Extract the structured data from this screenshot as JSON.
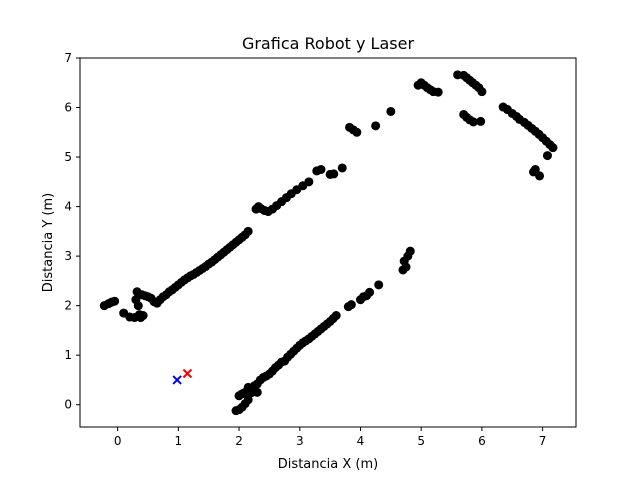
{
  "chart_data": {
    "type": "scatter",
    "title": "Grafica Robot y Laser",
    "xlabel": "Distancia X (m)",
    "ylabel": "Distancia Y (m)",
    "xlim": [
      -0.62,
      7.55
    ],
    "ylim": [
      -0.45,
      7.0
    ],
    "xticks": [
      0,
      1,
      2,
      3,
      4,
      5,
      6,
      7
    ],
    "yticks": [
      0,
      1,
      2,
      3,
      4,
      5,
      6,
      7
    ],
    "xtick_labels": [
      "0",
      "1",
      "2",
      "3",
      "4",
      "5",
      "6",
      "7"
    ],
    "ytick_labels": [
      "0",
      "1",
      "2",
      "3",
      "4",
      "5",
      "6",
      "7"
    ],
    "grid": false,
    "colors": {
      "laser": "#000000",
      "robot": "#0000ff",
      "target": "#ff0000"
    },
    "series": [
      {
        "marker": "circle",
        "color": "#000000",
        "points": [
          [
            -0.22,
            2.0
          ],
          [
            -0.15,
            2.04
          ],
          [
            -0.1,
            2.07
          ],
          [
            -0.05,
            2.09
          ],
          [
            0.1,
            1.85
          ],
          [
            0.2,
            1.77
          ],
          [
            0.28,
            1.76
          ],
          [
            0.3,
            2.12
          ],
          [
            0.32,
            2.28
          ],
          [
            0.34,
            2.0
          ],
          [
            0.36,
            1.82
          ],
          [
            0.38,
            1.76
          ],
          [
            0.4,
            2.22
          ],
          [
            0.42,
            1.8
          ],
          [
            0.45,
            2.2
          ],
          [
            0.5,
            2.18
          ],
          [
            0.55,
            2.15
          ],
          [
            0.6,
            2.08
          ],
          [
            0.65,
            2.05
          ],
          [
            0.7,
            2.12
          ],
          [
            0.75,
            2.18
          ],
          [
            0.8,
            2.22
          ],
          [
            0.85,
            2.28
          ],
          [
            0.9,
            2.32
          ],
          [
            0.95,
            2.37
          ],
          [
            1.0,
            2.42
          ],
          [
            1.05,
            2.47
          ],
          [
            1.1,
            2.52
          ],
          [
            1.15,
            2.56
          ],
          [
            1.2,
            2.6
          ],
          [
            1.25,
            2.63
          ],
          [
            1.3,
            2.67
          ],
          [
            1.35,
            2.71
          ],
          [
            1.4,
            2.75
          ],
          [
            1.45,
            2.79
          ],
          [
            1.5,
            2.84
          ],
          [
            1.55,
            2.88
          ],
          [
            1.6,
            2.93
          ],
          [
            1.65,
            2.98
          ],
          [
            1.7,
            3.03
          ],
          [
            1.75,
            3.08
          ],
          [
            1.8,
            3.13
          ],
          [
            1.85,
            3.18
          ],
          [
            1.9,
            3.23
          ],
          [
            1.95,
            3.28
          ],
          [
            2.0,
            3.33
          ],
          [
            2.05,
            3.38
          ],
          [
            2.1,
            3.43
          ],
          [
            2.15,
            3.5
          ],
          [
            2.28,
            3.95
          ],
          [
            2.32,
            4.0
          ],
          [
            2.36,
            3.96
          ],
          [
            2.42,
            3.92
          ],
          [
            2.48,
            3.9
          ],
          [
            2.55,
            3.95
          ],
          [
            2.62,
            4.02
          ],
          [
            2.7,
            4.1
          ],
          [
            2.78,
            4.18
          ],
          [
            2.86,
            4.26
          ],
          [
            2.95,
            4.34
          ],
          [
            3.05,
            4.42
          ],
          [
            3.15,
            4.5
          ],
          [
            3.28,
            4.72
          ],
          [
            3.35,
            4.75
          ],
          [
            3.5,
            4.65
          ],
          [
            3.56,
            4.66
          ],
          [
            3.7,
            4.78
          ],
          [
            3.82,
            5.6
          ],
          [
            3.88,
            5.55
          ],
          [
            3.94,
            5.5
          ],
          [
            4.25,
            5.63
          ],
          [
            4.5,
            5.92
          ],
          [
            4.95,
            6.45
          ],
          [
            5.0,
            6.5
          ],
          [
            5.05,
            6.45
          ],
          [
            5.1,
            6.4
          ],
          [
            5.15,
            6.36
          ],
          [
            5.2,
            6.32
          ],
          [
            5.28,
            6.31
          ],
          [
            5.6,
            6.66
          ],
          [
            5.7,
            6.65
          ],
          [
            5.75,
            6.6
          ],
          [
            5.8,
            6.55
          ],
          [
            5.85,
            6.5
          ],
          [
            5.9,
            6.45
          ],
          [
            5.95,
            6.4
          ],
          [
            6.0,
            6.32
          ],
          [
            5.7,
            5.86
          ],
          [
            5.75,
            5.8
          ],
          [
            5.8,
            5.75
          ],
          [
            5.86,
            5.71
          ],
          [
            5.98,
            5.72
          ],
          [
            6.35,
            6.01
          ],
          [
            6.42,
            5.96
          ],
          [
            6.5,
            5.88
          ],
          [
            6.57,
            5.82
          ],
          [
            6.62,
            5.76
          ],
          [
            6.7,
            5.7
          ],
          [
            6.76,
            5.64
          ],
          [
            6.82,
            5.58
          ],
          [
            6.88,
            5.52
          ],
          [
            6.94,
            5.46
          ],
          [
            7.0,
            5.39
          ],
          [
            7.06,
            5.32
          ],
          [
            7.12,
            5.25
          ],
          [
            7.17,
            5.19
          ],
          [
            7.08,
            5.03
          ],
          [
            6.85,
            4.7
          ],
          [
            6.88,
            4.75
          ],
          [
            6.95,
            4.62
          ],
          [
            1.95,
            -0.12
          ],
          [
            2.0,
            -0.1
          ],
          [
            2.05,
            -0.05
          ],
          [
            2.1,
            0.02
          ],
          [
            2.0,
            0.18
          ],
          [
            2.05,
            0.22
          ],
          [
            2.1,
            0.25
          ],
          [
            2.15,
            0.1
          ],
          [
            2.2,
            0.3
          ],
          [
            2.25,
            0.38
          ],
          [
            2.3,
            0.42
          ],
          [
            2.35,
            0.5
          ],
          [
            2.4,
            0.55
          ],
          [
            2.45,
            0.58
          ],
          [
            2.5,
            0.62
          ],
          [
            2.55,
            0.68
          ],
          [
            2.6,
            0.75
          ],
          [
            2.65,
            0.8
          ],
          [
            2.7,
            0.86
          ],
          [
            2.75,
            0.88
          ],
          [
            2.8,
            0.96
          ],
          [
            2.85,
            1.02
          ],
          [
            2.9,
            1.08
          ],
          [
            2.95,
            1.14
          ],
          [
            3.0,
            1.2
          ],
          [
            3.05,
            1.25
          ],
          [
            3.1,
            1.29
          ],
          [
            3.15,
            1.33
          ],
          [
            3.2,
            1.38
          ],
          [
            3.25,
            1.43
          ],
          [
            3.3,
            1.48
          ],
          [
            3.35,
            1.53
          ],
          [
            3.4,
            1.58
          ],
          [
            3.45,
            1.63
          ],
          [
            3.5,
            1.68
          ],
          [
            3.55,
            1.74
          ],
          [
            3.6,
            1.8
          ],
          [
            3.8,
            1.98
          ],
          [
            3.85,
            2.02
          ],
          [
            4.0,
            2.12
          ],
          [
            4.05,
            2.18
          ],
          [
            4.1,
            2.2
          ],
          [
            4.15,
            2.27
          ],
          [
            4.3,
            2.42
          ],
          [
            4.7,
            2.72
          ],
          [
            4.72,
            2.9
          ],
          [
            4.75,
            2.78
          ],
          [
            4.78,
            3.0
          ],
          [
            4.82,
            3.1
          ],
          [
            2.3,
            0.25
          ],
          [
            2.15,
            0.35
          ],
          [
            2.2,
            0.24
          ]
        ]
      },
      {
        "marker": "x",
        "color": "#0000ff",
        "points": [
          [
            0.98,
            0.5
          ]
        ]
      },
      {
        "marker": "x",
        "color": "#ff0000",
        "points": [
          [
            1.15,
            0.63
          ]
        ]
      }
    ]
  }
}
